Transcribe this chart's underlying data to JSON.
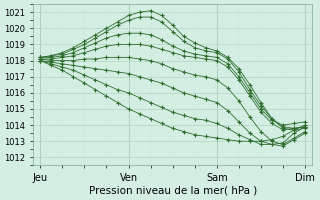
{
  "xlabel": "Pression niveau de la mer( hPa )",
  "xlabels": [
    "Jeu",
    "Ven",
    "Sam",
    "Dim"
  ],
  "xtick_positions": [
    0,
    24,
    48,
    72
  ],
  "ylim": [
    1011.5,
    1021.5
  ],
  "yticks": [
    1012,
    1013,
    1014,
    1015,
    1016,
    1017,
    1018,
    1019,
    1020,
    1021
  ],
  "xlim": [
    -2,
    74
  ],
  "bg_color": "#d4eee4",
  "grid_major_color": "#b8d8c8",
  "grid_minor_color": "#c8e8d8",
  "line_color": "#2d6e2d",
  "lines": [
    {
      "x": [
        0,
        3,
        6,
        9,
        12,
        15,
        18,
        21,
        24,
        27,
        30,
        33,
        36,
        39,
        42,
        45,
        48,
        51,
        54,
        57,
        60,
        63,
        66,
        69,
        72
      ],
      "y": [
        1018.2,
        1018.3,
        1018.5,
        1018.8,
        1019.2,
        1019.6,
        1020.0,
        1020.4,
        1020.8,
        1021.0,
        1021.1,
        1020.8,
        1020.2,
        1019.5,
        1019.1,
        1018.8,
        1018.6,
        1018.2,
        1017.5,
        1016.5,
        1015.4,
        1014.4,
        1013.8,
        1013.7,
        1013.8
      ]
    },
    {
      "x": [
        0,
        3,
        6,
        9,
        12,
        15,
        18,
        21,
        24,
        27,
        30,
        33,
        36,
        39,
        42,
        45,
        48,
        51,
        54,
        57,
        60,
        63,
        66,
        69,
        72
      ],
      "y": [
        1018.2,
        1018.3,
        1018.4,
        1018.7,
        1019.0,
        1019.4,
        1019.8,
        1020.2,
        1020.5,
        1020.7,
        1020.7,
        1020.4,
        1019.8,
        1019.2,
        1018.8,
        1018.6,
        1018.5,
        1018.1,
        1017.3,
        1016.2,
        1015.2,
        1014.4,
        1013.9,
        1013.8,
        1013.9
      ]
    },
    {
      "x": [
        0,
        3,
        6,
        9,
        12,
        15,
        18,
        21,
        24,
        27,
        30,
        33,
        36,
        39,
        42,
        45,
        48,
        51,
        54,
        57,
        60,
        63,
        66,
        69,
        72
      ],
      "y": [
        1018.2,
        1018.2,
        1018.3,
        1018.5,
        1018.8,
        1019.1,
        1019.4,
        1019.6,
        1019.7,
        1019.7,
        1019.6,
        1019.3,
        1018.9,
        1018.6,
        1018.4,
        1018.3,
        1018.2,
        1017.8,
        1017.0,
        1016.0,
        1015.0,
        1014.3,
        1014.0,
        1014.1,
        1014.2
      ]
    },
    {
      "x": [
        0,
        3,
        6,
        9,
        12,
        15,
        18,
        21,
        24,
        27,
        30,
        33,
        36,
        39,
        42,
        45,
        48,
        51,
        54,
        57,
        60,
        63,
        66,
        69,
        72
      ],
      "y": [
        1018.1,
        1018.1,
        1018.2,
        1018.3,
        1018.5,
        1018.7,
        1018.9,
        1019.0,
        1019.0,
        1019.0,
        1018.9,
        1018.7,
        1018.5,
        1018.3,
        1018.2,
        1018.1,
        1018.0,
        1017.6,
        1016.8,
        1015.8,
        1014.8,
        1014.1,
        1013.7,
        1013.8,
        1013.9
      ]
    },
    {
      "x": [
        0,
        3,
        6,
        9,
        12,
        15,
        18,
        21,
        24,
        27,
        30,
        33,
        36,
        39,
        42,
        45,
        48,
        51,
        54,
        57,
        60,
        63,
        66,
        69,
        72
      ],
      "y": [
        1018.1,
        1018.0,
        1018.0,
        1018.0,
        1018.1,
        1018.1,
        1018.2,
        1018.2,
        1018.2,
        1018.1,
        1018.0,
        1017.8,
        1017.5,
        1017.3,
        1017.1,
        1017.0,
        1016.8,
        1016.3,
        1015.5,
        1014.5,
        1013.6,
        1013.0,
        1012.8,
        1013.2,
        1013.6
      ]
    },
    {
      "x": [
        0,
        3,
        6,
        9,
        12,
        15,
        18,
        21,
        24,
        27,
        30,
        33,
        36,
        39,
        42,
        45,
        48,
        51,
        54,
        57,
        60,
        63,
        66,
        69,
        72
      ],
      "y": [
        1018.0,
        1017.9,
        1017.8,
        1017.7,
        1017.6,
        1017.5,
        1017.4,
        1017.3,
        1017.2,
        1017.0,
        1016.8,
        1016.6,
        1016.3,
        1016.0,
        1015.8,
        1015.6,
        1015.4,
        1014.9,
        1014.2,
        1013.5,
        1013.0,
        1012.8,
        1012.7,
        1013.1,
        1013.5
      ]
    },
    {
      "x": [
        0,
        3,
        6,
        9,
        12,
        15,
        18,
        21,
        24,
        27,
        30,
        33,
        36,
        39,
        42,
        45,
        48,
        51,
        54,
        57,
        60,
        63,
        66,
        69,
        72
      ],
      "y": [
        1018.0,
        1017.8,
        1017.6,
        1017.4,
        1017.1,
        1016.8,
        1016.5,
        1016.2,
        1016.0,
        1015.7,
        1015.4,
        1015.1,
        1014.8,
        1014.6,
        1014.4,
        1014.3,
        1014.1,
        1013.8,
        1013.4,
        1013.1,
        1012.8,
        1012.8,
        1012.9,
        1013.5,
        1013.9
      ]
    },
    {
      "x": [
        0,
        3,
        6,
        9,
        12,
        15,
        18,
        21,
        24,
        27,
        30,
        33,
        36,
        39,
        42,
        45,
        48,
        51,
        54,
        57,
        60,
        63,
        66,
        69,
        72
      ],
      "y": [
        1018.0,
        1017.7,
        1017.4,
        1017.0,
        1016.6,
        1016.2,
        1015.8,
        1015.4,
        1015.0,
        1014.7,
        1014.4,
        1014.1,
        1013.8,
        1013.6,
        1013.4,
        1013.3,
        1013.2,
        1013.1,
        1013.0,
        1013.0,
        1013.0,
        1013.1,
        1013.3,
        1013.7,
        1014.0
      ]
    }
  ]
}
